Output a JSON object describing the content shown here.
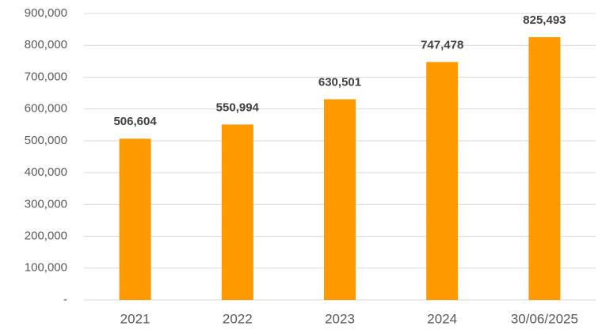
{
  "chart_data": {
    "type": "bar",
    "categories": [
      "2021",
      "2022",
      "2023",
      "2024",
      "30/06/2025"
    ],
    "values": [
      506604,
      550994,
      630501,
      747478,
      825493
    ],
    "value_labels": [
      "506,604",
      "550,994",
      "630,501",
      "747,478",
      "825,493"
    ],
    "color": "#ff9900",
    "ylim": [
      0,
      900000
    ],
    "yticks": [
      {
        "value": 0,
        "label": "-"
      },
      {
        "value": 100000,
        "label": "100,000"
      },
      {
        "value": 200000,
        "label": "200,000"
      },
      {
        "value": 300000,
        "label": "300,000"
      },
      {
        "value": 400000,
        "label": "400,000"
      },
      {
        "value": 500000,
        "label": "500,000"
      },
      {
        "value": 600000,
        "label": "600,000"
      },
      {
        "value": 700000,
        "label": "700,000"
      },
      {
        "value": 800000,
        "label": "800,000"
      },
      {
        "value": 900000,
        "label": "900,000"
      }
    ],
    "grid": true
  }
}
